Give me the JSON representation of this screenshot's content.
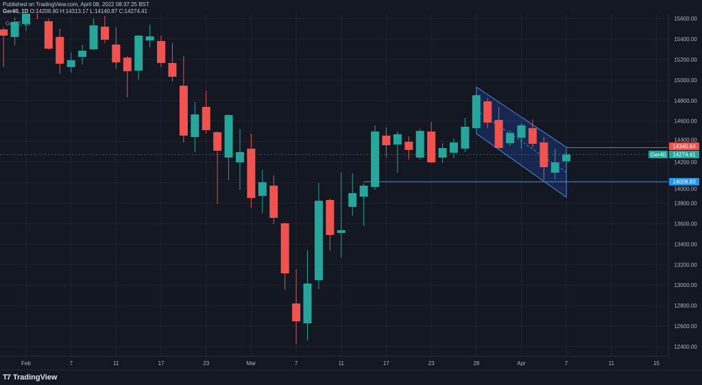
{
  "header": {
    "published": "Published on TradingView.com, April 08, 2022 08:37:25 BST",
    "symbol": "Ger40, 1D",
    "o_label": "O:",
    "o": "14206.90",
    "h_label": "H:",
    "h": "14313.17",
    "l_label": "L:",
    "l": "14140.87",
    "c_label": "C:",
    "c": "14274.41"
  },
  "watermark": "Ger40, 1D",
  "footer": {
    "brand": "TradingView"
  },
  "colors": {
    "up": "#26a69a",
    "down": "#ef5350",
    "background": "#131722",
    "grid": "#20242f",
    "hline_red": "#ef5350",
    "hline_blue": "#2196f3",
    "channel": "#2962ff"
  },
  "chart_data": {
    "type": "candlestick",
    "symbol": "Ger40",
    "interval": "1D",
    "ylim": [
      12300,
      15700
    ],
    "grid": true,
    "y_ticks": [
      15600,
      15400,
      15200,
      15000,
      14800,
      14600,
      14400,
      14200,
      14000,
      13800,
      13600,
      13400,
      13200,
      13000,
      12800,
      12600,
      12400
    ],
    "y_tick_labels": [
      "15600.00",
      "15400.00",
      "15200.00",
      "15000.00",
      "14800.00",
      "14600.00",
      "14400.00",
      "14200.00",
      "14000.00",
      "13800.00",
      "13600.00",
      "13400.00",
      "13200.00",
      "13000.00",
      "12800.00",
      "12600.00",
      "12400.00"
    ],
    "x_ticks": [
      {
        "label": "Feb",
        "index": 3
      },
      {
        "label": "7",
        "index": 7
      },
      {
        "label": "11",
        "index": 11
      },
      {
        "label": "17",
        "index": 15
      },
      {
        "label": "23",
        "index": 19
      },
      {
        "label": "Mar",
        "index": 23
      },
      {
        "label": "7",
        "index": 27
      },
      {
        "label": "11",
        "index": 31
      },
      {
        "label": "17",
        "index": 35
      },
      {
        "label": "23",
        "index": 39
      },
      {
        "label": "28",
        "index": 43
      },
      {
        "label": "Apr",
        "index": 47
      },
      {
        "label": "7",
        "index": 51
      },
      {
        "label": "11",
        "index": 55
      },
      {
        "label": "15",
        "index": 59
      }
    ],
    "candles": [
      [
        15493,
        15513,
        15126,
        15433
      ],
      [
        15420,
        15613,
        15340,
        15567
      ],
      [
        15547,
        15700,
        15480,
        15660
      ],
      [
        15720,
        15760,
        15593,
        15680
      ],
      [
        15573,
        15600,
        15293,
        15306
      ],
      [
        15420,
        15500,
        15059,
        15159
      ],
      [
        15126,
        15266,
        15072,
        15193
      ],
      [
        15226,
        15346,
        15152,
        15286
      ],
      [
        15299,
        15600,
        15293,
        15533
      ],
      [
        15520,
        15627,
        15360,
        15393
      ],
      [
        15346,
        15513,
        15112,
        15172
      ],
      [
        15219,
        15233,
        14832,
        15086
      ],
      [
        15092,
        15440,
        15005,
        15433
      ],
      [
        15386,
        15540,
        15319,
        15426
      ],
      [
        15380,
        15433,
        15126,
        15166
      ],
      [
        15166,
        15360,
        14985,
        15032
      ],
      [
        14945,
        15233,
        14391,
        14458
      ],
      [
        14444,
        14785,
        14297,
        14665
      ],
      [
        14738,
        14899,
        14478,
        14511
      ],
      [
        14491,
        14500,
        13790,
        14311
      ],
      [
        14244,
        14665,
        14023,
        14658
      ],
      [
        14197,
        14524,
        13930,
        14297
      ],
      [
        14331,
        14478,
        13756,
        13850
      ],
      [
        13870,
        14124,
        13703,
        14003
      ],
      [
        13970,
        14070,
        13596,
        13656
      ],
      [
        13603,
        13610,
        12955,
        13115
      ],
      [
        12821,
        13155,
        12427,
        12647
      ],
      [
        12627,
        13342,
        12460,
        13015
      ],
      [
        13048,
        13997,
        12961,
        13823
      ],
      [
        13830,
        13843,
        13336,
        13489
      ],
      [
        13509,
        14097,
        13269,
        13536
      ],
      [
        13763,
        14090,
        13676,
        13897
      ],
      [
        13863,
        13990,
        13576,
        13970
      ],
      [
        13957,
        14558,
        13930,
        14498
      ],
      [
        14458,
        14538,
        14244,
        14364
      ],
      [
        14371,
        14498,
        14097,
        14471
      ],
      [
        14398,
        14451,
        14224,
        14318
      ],
      [
        14244,
        14524,
        14224,
        14504
      ],
      [
        14498,
        14591,
        14190,
        14197
      ],
      [
        14244,
        14384,
        14190,
        14337
      ],
      [
        14291,
        14431,
        14237,
        14391
      ],
      [
        14331,
        14631,
        14297,
        14545
      ],
      [
        14531,
        14865,
        14531,
        14852
      ],
      [
        14792,
        14825,
        14531,
        14585
      ],
      [
        14611,
        14738,
        14337,
        14337
      ],
      [
        14384,
        14511,
        14357,
        14484
      ],
      [
        14438,
        14578,
        14331,
        14558
      ],
      [
        14531,
        14618,
        14344,
        14378
      ],
      [
        14391,
        14444,
        14023,
        14150
      ],
      [
        14097,
        14331,
        14030,
        14197
      ],
      [
        14206.9,
        14313.17,
        14140.87,
        14274.41
      ]
    ],
    "candle_format": [
      "open",
      "high",
      "low",
      "close"
    ],
    "last_price": {
      "label": "Ger40",
      "value": "14274.41",
      "price": 14274.41
    },
    "horizontal_lines": [
      {
        "price": 14340.64,
        "label": "14340.64",
        "color": "#ef5350",
        "from_index": 51
      },
      {
        "price": 14008.83,
        "label": "14008.83",
        "color": "#2196f3",
        "from_index": 33
      }
    ],
    "channel": {
      "start_index": 43,
      "end_index": 51,
      "upper": [
        14932,
        14344
      ],
      "lower": [
        14478,
        13857
      ]
    }
  }
}
